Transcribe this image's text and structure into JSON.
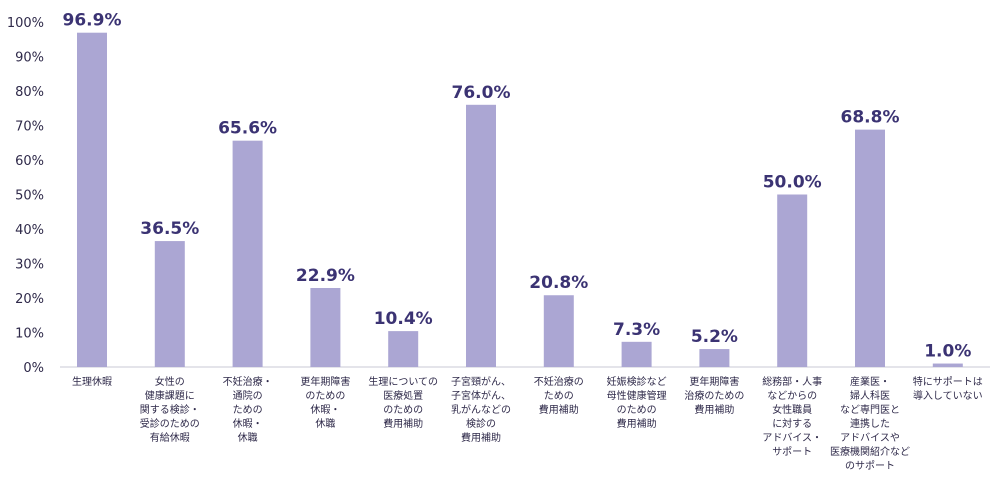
{
  "chart_data": {
    "type": "bar",
    "categories": [
      [
        "生理休暇"
      ],
      [
        "女性の",
        "健康課題に",
        "関する検診・",
        "受診のための",
        "有給休暇"
      ],
      [
        "不妊治療・",
        "通院の",
        "ための",
        "休暇・",
        "休職"
      ],
      [
        "更年期障害",
        "のための",
        "休暇・",
        "休職"
      ],
      [
        "生理についての",
        "医療処置",
        "のための",
        "費用補助"
      ],
      [
        "子宮頸がん、",
        "子宮体がん、",
        "乳がんなどの",
        "検診の",
        "費用補助"
      ],
      [
        "不妊治療の",
        "ための",
        "費用補助"
      ],
      [
        "妊娠検診など",
        "母性健康管理",
        "のための",
        "費用補助"
      ],
      [
        "更年期障害",
        "治療のための",
        "費用補助"
      ],
      [
        "総務部・人事",
        "などからの",
        "女性職員",
        "に対する",
        "アドバイス・",
        "サポート"
      ],
      [
        "産業医・",
        "婦人科医",
        "など専門医と",
        "連携した",
        "アドバイスや",
        "医療機関紹介など",
        "のサポート"
      ],
      [
        "特にサポートは",
        "導入していない"
      ]
    ],
    "values": [
      96.9,
      36.5,
      65.6,
      22.9,
      10.4,
      76.0,
      20.8,
      7.3,
      5.2,
      50.0,
      68.8,
      1.0
    ],
    "value_labels": [
      "96.9%",
      "36.5%",
      "65.6%",
      "22.9%",
      "10.4%",
      "76.0%",
      "20.8%",
      "7.3%",
      "5.2%",
      "50.0%",
      "68.8%",
      "1.0%"
    ],
    "y_ticks": [
      "0%",
      "10%",
      "20%",
      "30%",
      "40%",
      "50%",
      "60%",
      "70%",
      "80%",
      "90%",
      "100%"
    ],
    "ylim": [
      0,
      100
    ],
    "grid": false,
    "bar_color": "#aba6d3",
    "title": "",
    "xlabel": "",
    "ylabel": ""
  }
}
